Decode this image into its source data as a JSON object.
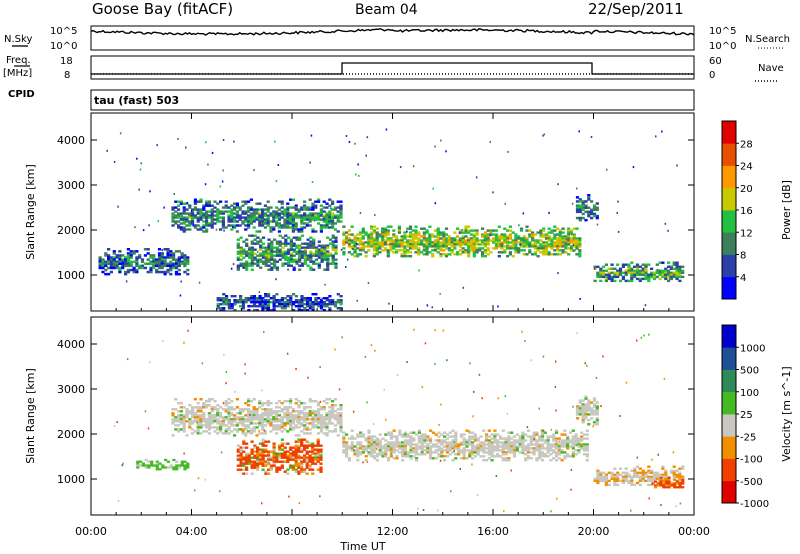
{
  "header": {
    "station": "Goose Bay (fitACF)",
    "beam": "Beam 04",
    "date": "22/Sep/2011"
  },
  "top_panels": {
    "nsky_label": "N.Sky",
    "nsky_ticks": [
      "10^5",
      "10^0"
    ],
    "nsearch_label": "N.Search",
    "nsearch_ticks": [
      "10^5",
      "10^0"
    ],
    "freq_label": "Freq.",
    "freq_unit": "[MHz]",
    "freq_ticks": [
      "18",
      "8"
    ],
    "nave_label": "Nave",
    "nave_ticks": [
      "60",
      "0"
    ],
    "cpid_label": "CPID",
    "cpid_value": "tau (fast) 503"
  },
  "colors": {
    "power_scale": [
      "#0000ff",
      "#2a3fa8",
      "#3d7f5a",
      "#22c040",
      "#c9c900",
      "#ff9900",
      "#e85000",
      "#e00000"
    ],
    "velocity_scale": [
      "#e00000",
      "#f04000",
      "#f09000",
      "#c8c8c0",
      "#44bb22",
      "#2e8b57",
      "#1e5096",
      "#0000cc"
    ],
    "scatter_grey": "#c8c8c0"
  },
  "chart_data": [
    {
      "type": "heatmap",
      "name": "power",
      "xlabel": "",
      "ylabel": "Slant Range [km]",
      "x_tick_labels": [
        "00:00",
        "04:00",
        "08:00",
        "12:00",
        "16:00",
        "20:00",
        "00:00"
      ],
      "y_ticks": [
        1000,
        2000,
        3000,
        4000
      ],
      "xlim_hours": [
        0,
        24
      ],
      "ylim_km": [
        200,
        4600
      ],
      "colorbar": {
        "label": "Power [dB]",
        "ticks": [
          "4",
          "8",
          "12",
          "16",
          "20",
          "24",
          "28"
        ],
        "range": [
          0,
          30
        ]
      },
      "echo_regions": [
        {
          "t0": 0.3,
          "t1": 3.9,
          "r0": 1000,
          "r1": 1600,
          "v": 9
        },
        {
          "t0": 3.2,
          "t1": 10.0,
          "r0": 1950,
          "r1": 2700,
          "v": 11
        },
        {
          "t0": 5.8,
          "t1": 9.8,
          "r0": 1100,
          "r1": 1900,
          "v": 12
        },
        {
          "t0": 10.0,
          "t1": 19.5,
          "r0": 1400,
          "r1": 2100,
          "v": 17
        },
        {
          "t0": 19.3,
          "t1": 20.2,
          "r0": 2200,
          "r1": 2800,
          "v": 10
        },
        {
          "t0": 20.0,
          "t1": 23.6,
          "r0": 850,
          "r1": 1300,
          "v": 13
        },
        {
          "t0": 5.0,
          "t1": 10.0,
          "r0": 200,
          "r1": 600,
          "v": 8
        }
      ]
    },
    {
      "type": "heatmap",
      "name": "velocity",
      "xlabel": "Time UT",
      "ylabel": "Slant Range [km]",
      "x_tick_labels": [
        "00:00",
        "04:00",
        "08:00",
        "12:00",
        "16:00",
        "20:00",
        "00:00"
      ],
      "y_ticks": [
        1000,
        2000,
        3000,
        4000
      ],
      "xlim_hours": [
        0,
        24
      ],
      "ylim_km": [
        200,
        4600
      ],
      "colorbar": {
        "label": "Velocity [m s^-1]",
        "ticks": [
          "1000",
          "500",
          "100",
          "25",
          "-25",
          "-100",
          "-500",
          "-1000"
        ]
      },
      "echo_regions": [
        {
          "t0": 1.8,
          "t1": 3.9,
          "r0": 1200,
          "r1": 1450,
          "v": 40
        },
        {
          "t0": 3.2,
          "t1": 10.0,
          "r0": 1950,
          "r1": 2800,
          "v": 0
        },
        {
          "t0": 5.8,
          "t1": 9.2,
          "r0": 1100,
          "r1": 1900,
          "v": -150
        },
        {
          "t0": 10.0,
          "t1": 19.8,
          "r0": 1400,
          "r1": 2100,
          "v": 0
        },
        {
          "t0": 19.3,
          "t1": 20.2,
          "r0": 2200,
          "r1": 2900,
          "v": 0
        },
        {
          "t0": 20.0,
          "t1": 23.6,
          "r0": 850,
          "r1": 1300,
          "v": -20
        },
        {
          "t0": 22.3,
          "t1": 23.6,
          "r0": 800,
          "r1": 1050,
          "v": -250
        }
      ]
    }
  ]
}
